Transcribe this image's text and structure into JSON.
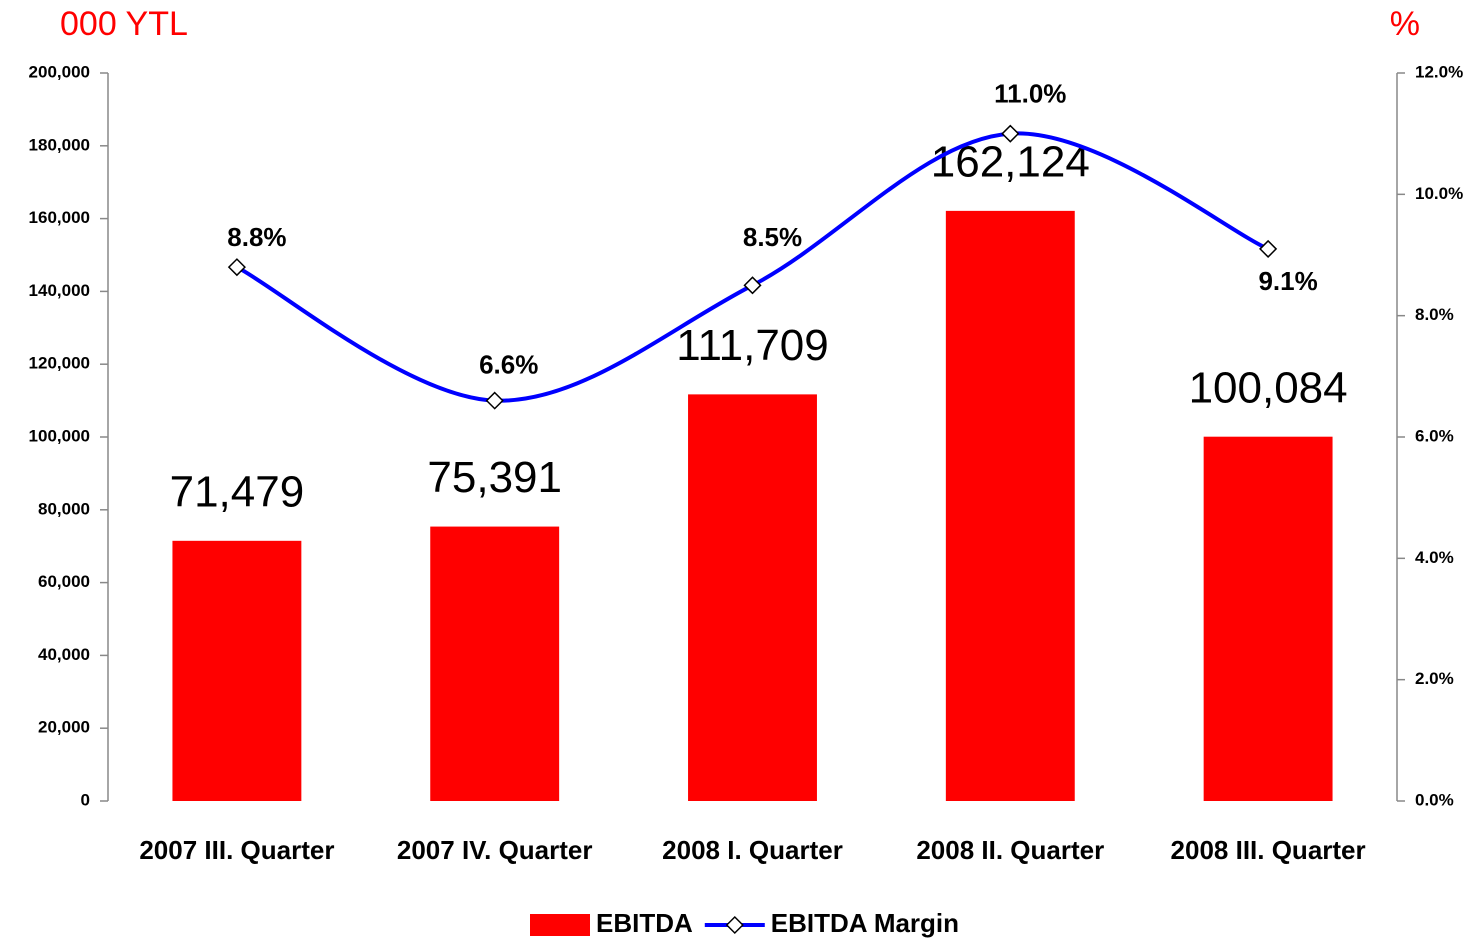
{
  "chart_data": {
    "type": "bar",
    "y_label": "000 YTL",
    "y2_label": "%",
    "categories": [
      "2007 III. Quarter",
      "2007 IV. Quarter",
      "2008 I. Quarter",
      "2008 II. Quarter",
      "2008 III. Quarter"
    ],
    "series": [
      {
        "name": "EBITDA",
        "type": "bar",
        "color": "#ff0000",
        "values": [
          71479,
          75391,
          111709,
          162124,
          100084
        ],
        "value_labels": [
          "71,479",
          "75,391",
          "111,709",
          "162,124",
          "100,084"
        ]
      },
      {
        "name": "EBITDA Margin",
        "type": "line",
        "axis": "y2",
        "color": "#0000ff",
        "values": [
          8.8,
          6.6,
          8.5,
          11.0,
          9.1
        ],
        "value_labels": [
          "8.8%",
          "6.6%",
          "8.5%",
          "11.0%",
          "9.1%"
        ]
      }
    ],
    "ylim": [
      0,
      200000
    ],
    "yticks": [
      0,
      {
        "value": 20000,
        "label": "20,000"
      },
      {
        "value": 40000,
        "label": "40,000"
      },
      {
        "value": 60000,
        "label": "60,000"
      },
      {
        "value": 80000,
        "label": "80,000"
      },
      {
        "value": 100000,
        "label": "100,000"
      },
      {
        "value": 120000,
        "label": "120,000"
      },
      {
        "value": 140000,
        "label": "140,000"
      },
      {
        "value": 160000,
        "label": "160,000"
      },
      {
        "value": 180000,
        "label": "180,000"
      },
      {
        "value": 200000,
        "label": "200,000"
      }
    ],
    "y2lim": [
      0,
      12
    ],
    "y2ticks": [
      {
        "value": 0,
        "label": "0.0%"
      },
      {
        "value": 2,
        "label": "2.0%"
      },
      {
        "value": 4,
        "label": "4.0%"
      },
      {
        "value": 6,
        "label": "6.0%"
      },
      {
        "value": 8,
        "label": "8.0%"
      },
      {
        "value": 10,
        "label": "10.0%"
      },
      {
        "value": 12,
        "label": "12.0%"
      }
    ],
    "legend": "bottom"
  }
}
